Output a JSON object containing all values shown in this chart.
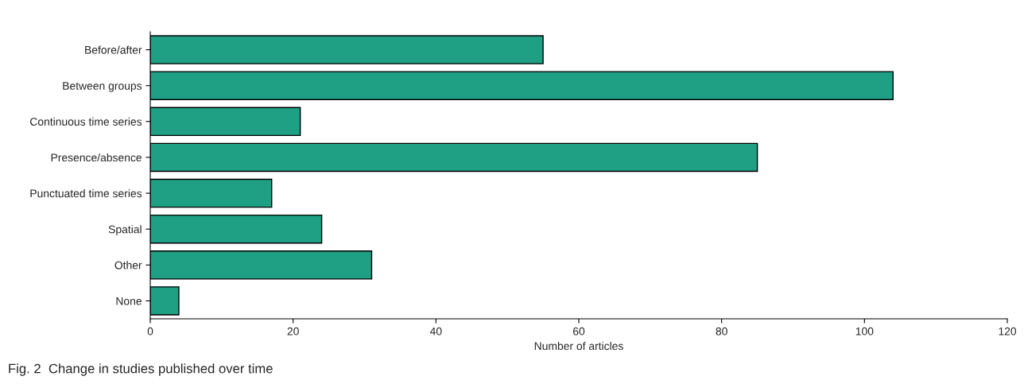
{
  "chart_data": {
    "type": "bar",
    "orientation": "horizontal",
    "categories": [
      "Before/after",
      "Between groups",
      "Continuous time series",
      "Presence/absence",
      "Punctuated time series",
      "Spatial",
      "Other",
      "None"
    ],
    "values": [
      55,
      104,
      21,
      85,
      17,
      24,
      31,
      4
    ],
    "color": "#1fa084",
    "xlabel": "Number of articles",
    "xlim": [
      0,
      120
    ],
    "xticks": [
      0,
      20,
      40,
      60,
      80,
      100,
      120
    ],
    "grid": false,
    "legend": false,
    "annotations": [
      "Fig. 2  Change in studies published over time"
    ]
  }
}
